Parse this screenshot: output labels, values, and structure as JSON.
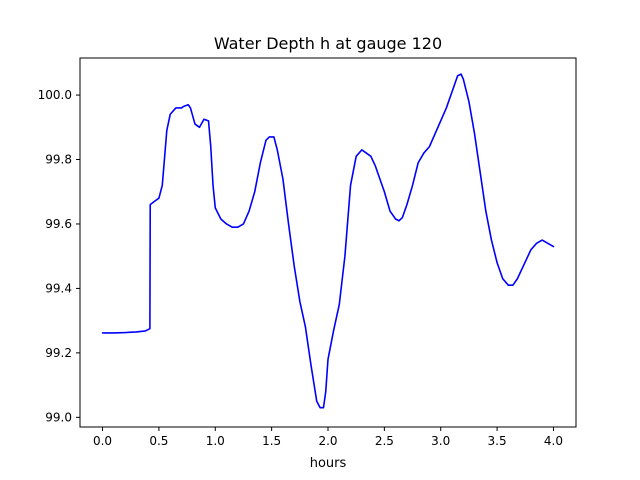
{
  "chart_data": {
    "type": "line",
    "title": "Water Depth h at gauge 120",
    "xlabel": "hours",
    "ylabel": "",
    "xlim": [
      -0.2,
      4.2
    ],
    "ylim": [
      98.97,
      100.115
    ],
    "x_ticks": [
      0.0,
      0.5,
      1.0,
      1.5,
      2.0,
      2.5,
      3.0,
      3.5,
      4.0
    ],
    "x_tick_labels": [
      "0.0",
      "0.5",
      "1.0",
      "1.5",
      "2.0",
      "2.5",
      "3.0",
      "3.5",
      "4.0"
    ],
    "y_ticks": [
      99.0,
      99.2,
      99.4,
      99.6,
      99.8,
      100.0
    ],
    "y_tick_labels": [
      "99.0",
      "99.2",
      "99.4",
      "99.6",
      "99.8",
      "100.0"
    ],
    "grid": false,
    "series": [
      {
        "color": "#0000ff",
        "x": [
          0.0,
          0.1,
          0.2,
          0.3,
          0.38,
          0.42,
          0.423,
          0.46,
          0.5,
          0.53,
          0.57,
          0.6,
          0.65,
          0.7,
          0.72,
          0.76,
          0.78,
          0.82,
          0.86,
          0.9,
          0.94,
          0.96,
          0.98,
          1.0,
          1.05,
          1.1,
          1.15,
          1.2,
          1.25,
          1.3,
          1.35,
          1.4,
          1.45,
          1.48,
          1.52,
          1.55,
          1.6,
          1.65,
          1.7,
          1.75,
          1.8,
          1.85,
          1.9,
          1.93,
          1.96,
          1.98,
          2.0,
          2.05,
          2.1,
          2.15,
          2.2,
          2.25,
          2.3,
          2.34,
          2.38,
          2.42,
          2.46,
          2.5,
          2.55,
          2.6,
          2.63,
          2.66,
          2.7,
          2.75,
          2.8,
          2.85,
          2.9,
          2.95,
          3.0,
          3.05,
          3.1,
          3.15,
          3.18,
          3.2,
          3.25,
          3.3,
          3.35,
          3.4,
          3.45,
          3.5,
          3.55,
          3.6,
          3.64,
          3.68,
          3.72,
          3.76,
          3.8,
          3.85,
          3.9,
          3.95,
          4.0
        ],
        "y": [
          99.262,
          99.262,
          99.263,
          99.265,
          99.268,
          99.275,
          99.66,
          99.67,
          99.68,
          99.72,
          99.89,
          99.94,
          99.96,
          99.96,
          99.965,
          99.97,
          99.96,
          99.91,
          99.9,
          99.925,
          99.92,
          99.84,
          99.72,
          99.65,
          99.615,
          99.6,
          99.59,
          99.59,
          99.6,
          99.64,
          99.7,
          99.79,
          99.86,
          99.87,
          99.87,
          99.83,
          99.74,
          99.6,
          99.47,
          99.36,
          99.28,
          99.16,
          99.05,
          99.03,
          99.03,
          99.08,
          99.18,
          99.27,
          99.35,
          99.5,
          99.72,
          99.81,
          99.83,
          99.82,
          99.81,
          99.78,
          99.74,
          99.7,
          99.64,
          99.615,
          99.61,
          99.62,
          99.66,
          99.72,
          99.79,
          99.82,
          99.84,
          99.88,
          99.92,
          99.96,
          100.01,
          100.06,
          100.065,
          100.05,
          99.98,
          99.88,
          99.76,
          99.64,
          99.55,
          99.48,
          99.43,
          99.41,
          99.41,
          99.43,
          99.46,
          99.49,
          99.52,
          99.54,
          99.55,
          99.54,
          99.53
        ]
      }
    ]
  }
}
